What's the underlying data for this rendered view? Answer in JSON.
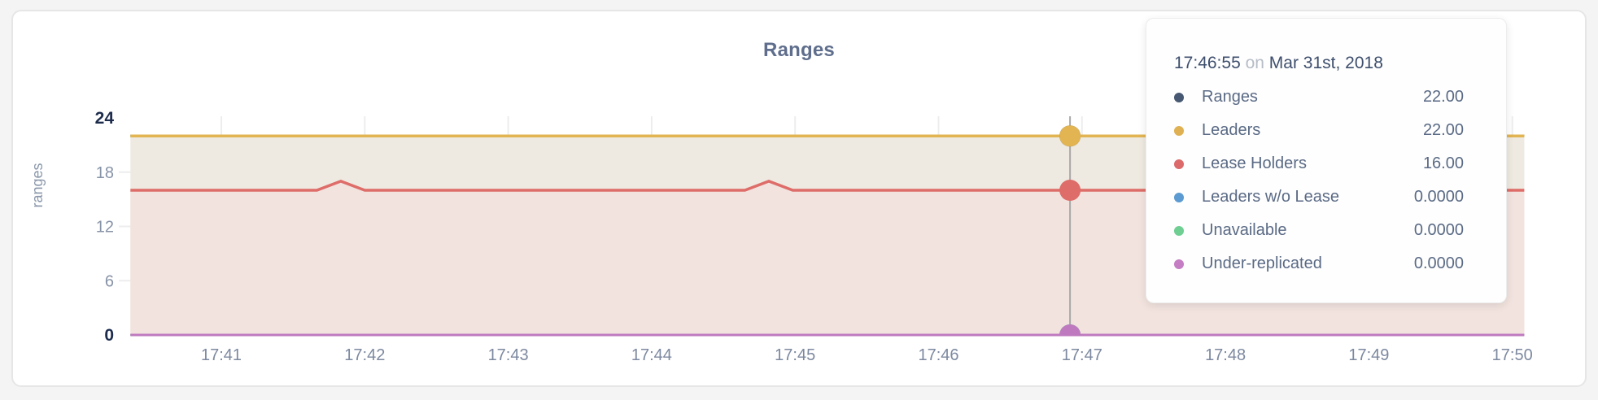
{
  "chart_data": {
    "type": "area",
    "title": "Ranges",
    "ylabel": "ranges",
    "ylim": [
      0,
      24
    ],
    "yticks": [
      24,
      18,
      12,
      6,
      0
    ],
    "ygrid": [
      18,
      12,
      6
    ],
    "xticks": [
      "17:41",
      "17:42",
      "17:43",
      "17:44",
      "17:45",
      "17:46",
      "17:47",
      "17:48",
      "17:49",
      "17:50"
    ],
    "x_domain_seconds_after_1740": [
      22,
      605
    ],
    "grid": true,
    "legend_position": "tooltip",
    "series": [
      {
        "name": "Ranges",
        "color": "#475872",
        "fill": "none",
        "line_width": 3.5,
        "points": [
          [
            22,
            22
          ],
          [
            605,
            22
          ]
        ]
      },
      {
        "name": "Leaders",
        "color": "#e2b452",
        "fill": "#eeeae1",
        "line_width": 3.5,
        "points": [
          [
            22,
            22
          ],
          [
            605,
            22
          ]
        ]
      },
      {
        "name": "Lease Holders",
        "color": "#de6c68",
        "fill": "#f2e3de",
        "line_width": 3.5,
        "points": [
          [
            22,
            16
          ],
          [
            100,
            16
          ],
          [
            110,
            17
          ],
          [
            120,
            16
          ],
          [
            279,
            16
          ],
          [
            289,
            17
          ],
          [
            299,
            16
          ],
          [
            605,
            16
          ]
        ]
      },
      {
        "name": "Leaders w/o Lease",
        "color": "#5c9bd1",
        "fill": "none",
        "line_width": 2,
        "points": [
          [
            22,
            0
          ],
          [
            605,
            0
          ]
        ]
      },
      {
        "name": "Unavailable",
        "color": "#6fce92",
        "fill": "none",
        "line_width": 2,
        "points": [
          [
            22,
            0
          ],
          [
            605,
            0
          ]
        ]
      },
      {
        "name": "Under-replicated",
        "color": "#bf7abf",
        "fill": "none",
        "line_width": 3,
        "points": [
          [
            22,
            0
          ],
          [
            605,
            0
          ]
        ]
      }
    ],
    "hover": {
      "time_seconds_after_1740": 415,
      "values": [
        22,
        22,
        16,
        0,
        0,
        0
      ],
      "guideline_color": "#a9a9a9"
    }
  },
  "axis_style": {
    "strong_tick_color": "#1d2c4d",
    "tick_color": "#8793a7",
    "x_tick_color": "#7d89a0",
    "ylabel_color": "#8a97aa",
    "grid_color": "rgba(0,0,0,0.07)"
  },
  "tooltip": {
    "time": "17:46:55",
    "connector": "on",
    "date": "Mar 31st, 2018",
    "rows": [
      {
        "label": "Ranges",
        "value": "22.00",
        "color": "#475872"
      },
      {
        "label": "Leaders",
        "value": "22.00",
        "color": "#e0b152"
      },
      {
        "label": "Lease Holders",
        "value": "16.00",
        "color": "#dc6a6a"
      },
      {
        "label": "Leaders w/o Lease",
        "value": "0.0000",
        "color": "#5c9bd1"
      },
      {
        "label": "Unavailable",
        "value": "0.0000",
        "color": "#6fce92"
      },
      {
        "label": "Under-replicated",
        "value": "0.0000",
        "color": "#c57ec3"
      }
    ]
  }
}
